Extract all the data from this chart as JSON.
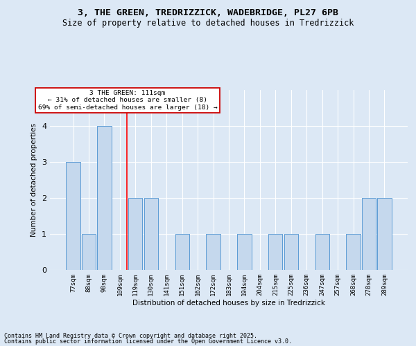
{
  "title": "3, THE GREEN, TREDRIZZICK, WADEBRIDGE, PL27 6PB",
  "subtitle": "Size of property relative to detached houses in Tredrizzick",
  "xlabel": "Distribution of detached houses by size in Tredrizzick",
  "ylabel": "Number of detached properties",
  "categories": [
    "77sqm",
    "88sqm",
    "98sqm",
    "109sqm",
    "119sqm",
    "130sqm",
    "141sqm",
    "151sqm",
    "162sqm",
    "172sqm",
    "183sqm",
    "194sqm",
    "204sqm",
    "215sqm",
    "225sqm",
    "236sqm",
    "247sqm",
    "257sqm",
    "268sqm",
    "278sqm",
    "289sqm"
  ],
  "values": [
    3,
    1,
    4,
    0,
    2,
    2,
    0,
    1,
    0,
    1,
    0,
    1,
    0,
    1,
    1,
    0,
    1,
    0,
    1,
    2,
    2
  ],
  "bar_color": "#c5d8ed",
  "bar_edge_color": "#5b9bd5",
  "background_color": "#dce8f5",
  "red_line_index": 3,
  "annotation_text": "3 THE GREEN: 111sqm\n← 31% of detached houses are smaller (8)\n69% of semi-detached houses are larger (18) →",
  "annotation_box_color": "#ffffff",
  "annotation_box_edge_color": "#cc0000",
  "ylim": [
    0,
    5
  ],
  "yticks": [
    0,
    1,
    2,
    3,
    4
  ],
  "footer1": "Contains HM Land Registry data © Crown copyright and database right 2025.",
  "footer2": "Contains public sector information licensed under the Open Government Licence v3.0."
}
